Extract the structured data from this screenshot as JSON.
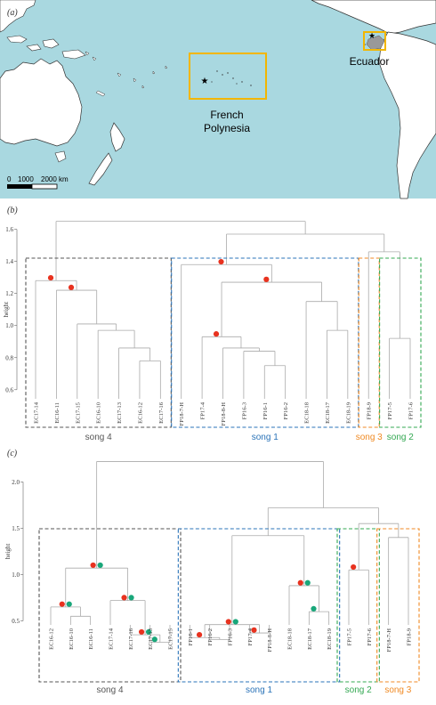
{
  "map": {
    "panel_label": "(a)",
    "french_polynesia_label": [
      "French",
      "Polynesia"
    ],
    "ecuador_label": "Ecuador",
    "scale": {
      "zero": "0",
      "mid": "1000",
      "end": "2000 km"
    },
    "ocean_color": "#a9d8e0",
    "land_color": "#ffffff",
    "box_color": "#f2b600"
  },
  "group_colors": {
    "song4": "#555555",
    "song1": "#2a73b8",
    "song3": "#f08a24",
    "song2": "#33a852"
  },
  "marker_colors": {
    "red": "#e8321f",
    "green": "#19a77a"
  },
  "chart_data": [
    {
      "type": "dendrogram",
      "panel_label": "(b)",
      "ylabel": "height",
      "ylim": [
        0.56,
        1.72
      ],
      "yticks": [
        0.6,
        0.8,
        1.0,
        1.2,
        1.4,
        1.6
      ],
      "leaves": [
        "EC17-14",
        "EC16-11",
        "EC17-15",
        "EC16-10",
        "EC17-13",
        "EC16-12",
        "EC17-16",
        "FP18-7-H",
        "FP17-4",
        "FP18-8-H",
        "FP16-3",
        "FP16-1",
        "FP16-2",
        "EC18-18",
        "EC18-17",
        "EC18-19",
        "FP18-9",
        "FP17-5",
        "FP17-6"
      ],
      "groups": [
        {
          "label": "song 4",
          "color": "#555555",
          "from": 0,
          "to": 6
        },
        {
          "label": "song 1",
          "color": "#2a73b8",
          "from": 7,
          "to": 15
        },
        {
          "label": "song 3",
          "color": "#f08a24",
          "from": 16,
          "to": 16
        },
        {
          "label": "song 2",
          "color": "#33a852",
          "from": 17,
          "to": 18
        }
      ],
      "merges": [
        {
          "a": 5,
          "b": 6,
          "h": 0.78
        },
        {
          "a": 4,
          "b": 19,
          "h": 0.86
        },
        {
          "a": 3,
          "b": 20,
          "h": 0.97
        },
        {
          "a": 2,
          "b": 21,
          "h": 1.01
        },
        {
          "a": 1,
          "b": 22,
          "h": 1.22,
          "dots": [
            "red"
          ]
        },
        {
          "a": 0,
          "b": 23,
          "h": 1.28,
          "dots": [
            "red"
          ]
        },
        {
          "a": 11,
          "b": 12,
          "h": 0.75
        },
        {
          "a": 10,
          "b": 25,
          "h": 0.84
        },
        {
          "a": 9,
          "b": 26,
          "h": 0.86
        },
        {
          "a": 8,
          "b": 27,
          "h": 0.93,
          "dots": [
            "red"
          ]
        },
        {
          "a": 14,
          "b": 15,
          "h": 0.97
        },
        {
          "a": 13,
          "b": 29,
          "h": 1.15
        },
        {
          "a": 28,
          "b": 30,
          "h": 1.27,
          "dots": [
            "red"
          ]
        },
        {
          "a": 7,
          "b": 31,
          "h": 1.38,
          "dots": [
            "red"
          ]
        },
        {
          "a": 17,
          "b": 18,
          "h": 0.92
        },
        {
          "a": 16,
          "b": 33,
          "h": 1.46
        },
        {
          "a": 32,
          "b": 34,
          "h": 1.57
        },
        {
          "a": 24,
          "b": 35,
          "h": 1.65
        }
      ]
    },
    {
      "type": "dendrogram",
      "panel_label": "(c)",
      "ylabel": "height",
      "ylim": [
        -0.1,
        2.32
      ],
      "yticks": [
        0.5,
        1.0,
        1.5,
        2.0
      ],
      "leaves": [
        "EC16-12",
        "EC16-10",
        "EC16-11",
        "EC17-14",
        "EC17-16",
        "EC17-13",
        "EC17-15",
        "FP16-1",
        "FP16-2",
        "FP16-3",
        "FP17-4",
        "FP18-8-H",
        "EC18-18",
        "EC18-17",
        "EC18-19",
        "FP17-5",
        "FP17-6",
        "FP18-7-H",
        "FP18-9"
      ],
      "groups": [
        {
          "label": "song 4",
          "color": "#555555",
          "from": 0,
          "to": 6
        },
        {
          "label": "song 1",
          "color": "#2a73b8",
          "from": 7,
          "to": 14
        },
        {
          "label": "song 2",
          "color": "#33a852",
          "from": 15,
          "to": 16
        },
        {
          "label": "song 3",
          "color": "#f08a24",
          "from": 17,
          "to": 18
        }
      ],
      "merges": [
        {
          "a": 1,
          "b": 2,
          "h": 0.55
        },
        {
          "a": 0,
          "b": 19,
          "h": 0.65,
          "dots": [
            "red",
            "green"
          ]
        },
        {
          "a": 5,
          "b": 6,
          "h": 0.27,
          "dots": [
            "green"
          ]
        },
        {
          "a": 4,
          "b": 21,
          "h": 0.35,
          "dots": [
            "red",
            "green"
          ]
        },
        {
          "a": 3,
          "b": 22,
          "h": 0.72,
          "dots": [
            "red",
            "green"
          ]
        },
        {
          "a": 20,
          "b": 23,
          "h": 1.07,
          "dots": [
            "red",
            "green"
          ]
        },
        {
          "a": 8,
          "b": 9,
          "h": 0.3
        },
        {
          "a": 7,
          "b": 25,
          "h": 0.32,
          "dots": [
            "red"
          ]
        },
        {
          "a": 10,
          "b": 11,
          "h": 0.37,
          "dots": [
            "red"
          ]
        },
        {
          "a": 26,
          "b": 27,
          "h": 0.46,
          "dots": [
            "red",
            "green"
          ]
        },
        {
          "a": 13,
          "b": 14,
          "h": 0.6,
          "dots": [
            "green"
          ]
        },
        {
          "a": 12,
          "b": 29,
          "h": 0.88,
          "dots": [
            "red",
            "green"
          ]
        },
        {
          "a": 28,
          "b": 30,
          "h": 1.42
        },
        {
          "a": 15,
          "b": 16,
          "h": 1.05,
          "dots": [
            "red"
          ]
        },
        {
          "a": 17,
          "b": 18,
          "h": 1.4
        },
        {
          "a": 32,
          "b": 33,
          "h": 1.55
        },
        {
          "a": 31,
          "b": 34,
          "h": 1.72
        },
        {
          "a": 24,
          "b": 35,
          "h": 2.22
        }
      ]
    }
  ]
}
